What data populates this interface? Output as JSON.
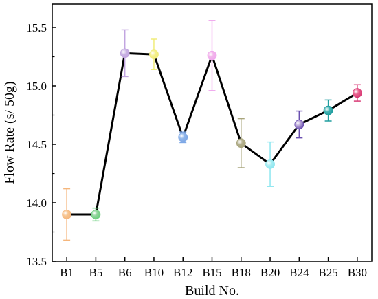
{
  "chart_data": {
    "type": "line",
    "xlabel": "Build No.",
    "ylabel": "Flow Rate (s/ 50g)",
    "ylim": [
      13.5,
      15.7
    ],
    "yticks": [
      13.5,
      14.0,
      14.5,
      15.0,
      15.5
    ],
    "ytick_labels": [
      "13.5",
      "14.0",
      "14.5",
      "15.0",
      "15.5"
    ],
    "grid": false,
    "categories": [
      "B1",
      "B5",
      "B6",
      "B10",
      "B12",
      "B15",
      "B18",
      "B20",
      "B24",
      "B25",
      "B30"
    ],
    "values": [
      13.9,
      13.9,
      15.28,
      15.27,
      14.56,
      15.26,
      14.51,
      14.33,
      14.67,
      14.79,
      14.94
    ],
    "errors": [
      0.22,
      0.055,
      0.2,
      0.13,
      0.045,
      0.3,
      0.21,
      0.19,
      0.115,
      0.09,
      0.07
    ],
    "marker_colors": [
      "#f7c48f",
      "#8fd49a",
      "#c9b3e3",
      "#f5f08f",
      "#8fb5ea",
      "#f2b3ea",
      "#b3b08e",
      "#aaeef3",
      "#b6a3d6",
      "#44b2b2",
      "#e8628e"
    ],
    "error_colors": [
      "#f5b67c",
      "#6ccf7e",
      "#c2a5e0",
      "#f0ec7a",
      "#7ea8e6",
      "#f0a8ee",
      "#a9a57c",
      "#8de6f0",
      "#6a4fb0",
      "#1f9d9f",
      "#d93a76"
    ],
    "line_color": "#000000"
  }
}
